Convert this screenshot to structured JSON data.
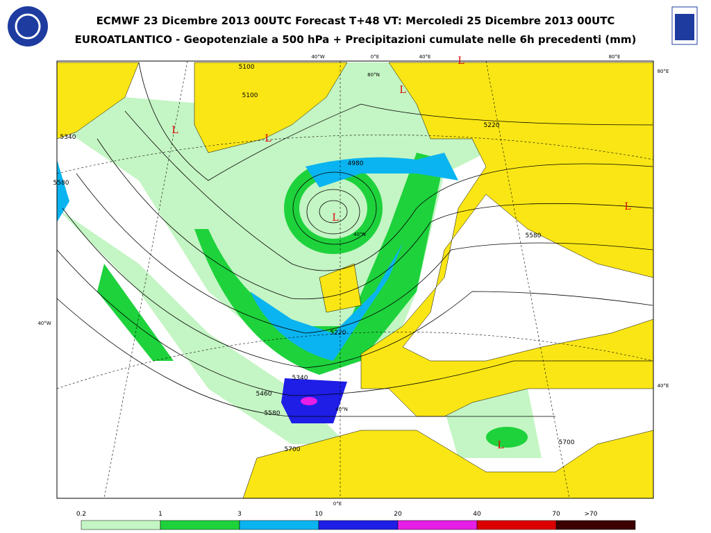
{
  "header": {
    "title": "ECMWF 23 Dicembre 2013 00UTC Forecast T+48 VT: Mercoledi 25 Dicembre 2013 00UTC",
    "subtitle": "EUROATLANTICO - Geopotenziale a 500 hPa + Precipitazioni cumulate nelle 6h precedenti (mm)"
  },
  "graticule_labels": [
    "40°W",
    "0°E",
    "40°E",
    "80°E",
    "80°E",
    "40°W",
    "40°E",
    "80°N",
    "40°N",
    "40°N",
    "0°E"
  ],
  "contour_labels": [
    "5100",
    "5100",
    "5340",
    "5580",
    "5220",
    "4980",
    "5580",
    "5340",
    "5460",
    "5580",
    "5700",
    "5700",
    "5220"
  ],
  "pressure_centers": [
    "L",
    "L",
    "L",
    "L",
    "L",
    "L",
    "L"
  ],
  "legend": [
    {
      "label": "0.2",
      "color": "#c4f5c4"
    },
    {
      "label": "1",
      "color": "#1ed23c"
    },
    {
      "label": "3",
      "color": "#0ab4f0"
    },
    {
      "label": "10",
      "color": "#1e1ee6"
    },
    {
      "label": "20",
      "color": "#e61ee6"
    },
    {
      "label": "40",
      "color": "#dc0000"
    },
    {
      "label": "70",
      "color": "#3c0000"
    },
    {
      "label": ">70",
      "color": "#3c0000"
    }
  ]
}
